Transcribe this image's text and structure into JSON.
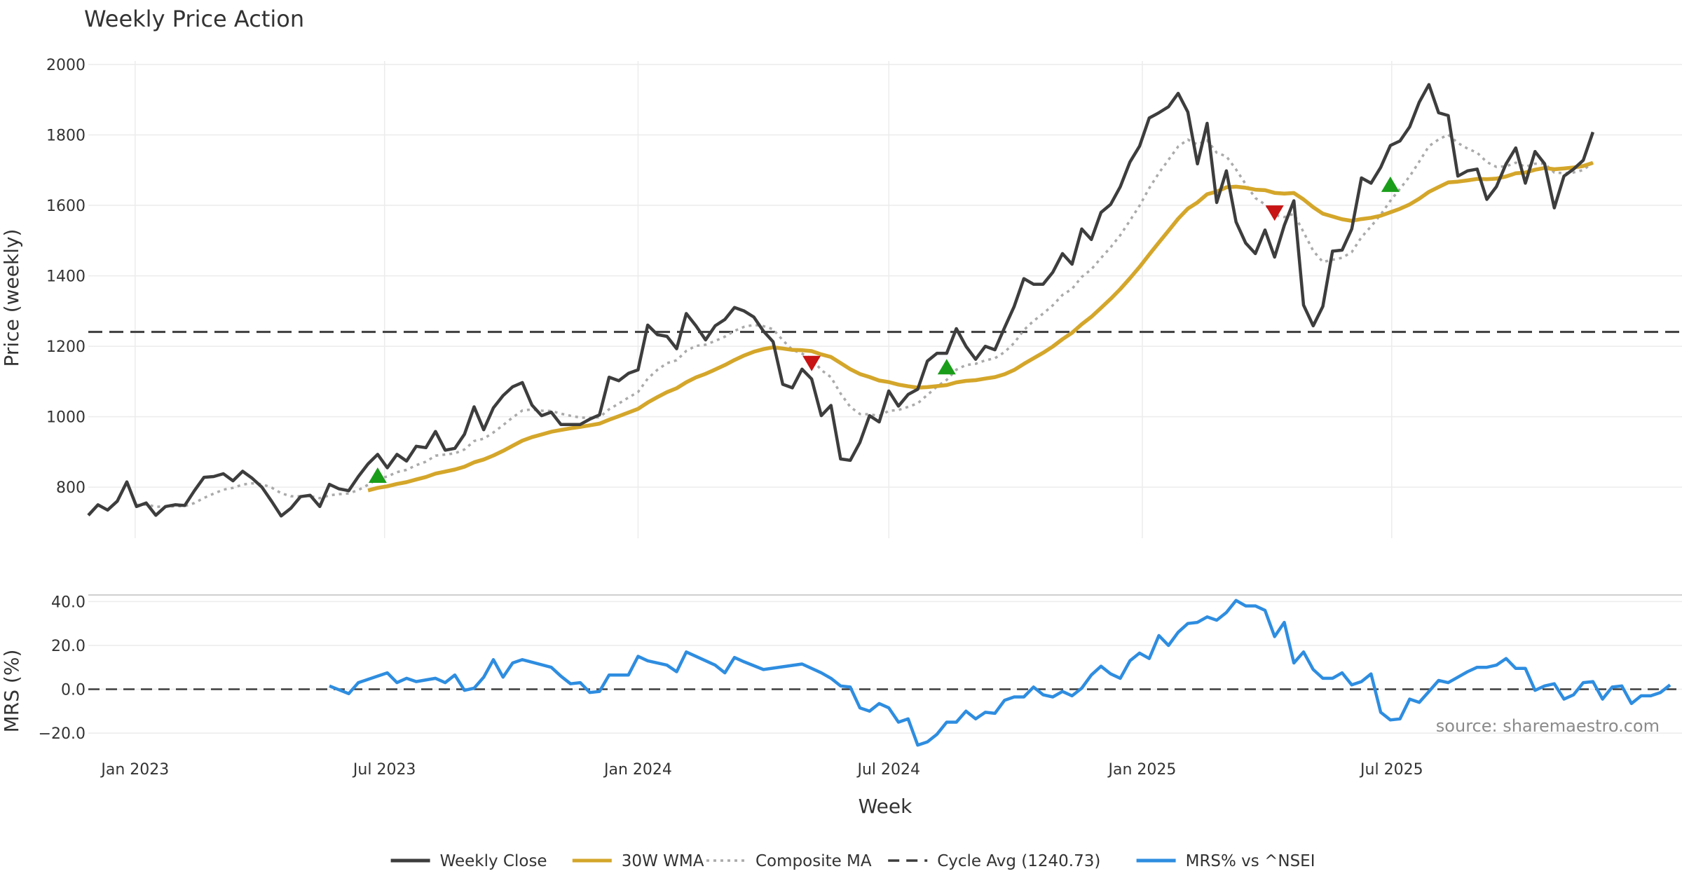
{
  "chart_data": {
    "type": "line",
    "title": "Weekly Price Action",
    "xlabel": "Week",
    "source": "source: sharemaestro.com",
    "x_range": [
      "2022-11-28",
      "2025-09-22"
    ],
    "x_ticks": [
      {
        "date": "2023-01-01",
        "label": "Jan 2023"
      },
      {
        "date": "2023-07-01",
        "label": "Jul 2023"
      },
      {
        "date": "2024-01-01",
        "label": "Jan 2024"
      },
      {
        "date": "2024-07-01",
        "label": "Jul 2024"
      },
      {
        "date": "2025-01-01",
        "label": "Jan 2025"
      },
      {
        "date": "2025-07-01",
        "label": "Jul 2025"
      }
    ],
    "price_panel": {
      "ylabel": "Price (weekly)",
      "ylim": [
        655,
        2010
      ],
      "y_ticks": [
        800,
        1000,
        1200,
        1400,
        1600,
        1800,
        2000
      ],
      "cycle_avg": 1240.73,
      "close_anchors": [
        [
          "2022-11-28",
          720
        ],
        [
          "2022-12-05",
          750
        ],
        [
          "2022-12-12",
          735
        ],
        [
          "2022-12-19",
          760
        ],
        [
          "2022-12-26",
          815
        ],
        [
          "2023-01-02",
          745
        ],
        [
          "2023-01-09",
          755
        ],
        [
          "2023-01-16",
          720
        ],
        [
          "2023-01-23",
          745
        ],
        [
          "2023-01-30",
          750
        ],
        [
          "2023-02-06",
          748
        ],
        [
          "2023-02-13",
          790
        ],
        [
          "2023-02-20",
          828
        ],
        [
          "2023-02-27",
          830
        ],
        [
          "2023-03-06",
          838
        ],
        [
          "2023-03-13",
          818
        ],
        [
          "2023-03-20",
          845
        ],
        [
          "2023-03-27",
          825
        ],
        [
          "2023-04-03",
          800
        ],
        [
          "2023-04-10",
          760
        ],
        [
          "2023-04-17",
          718
        ],
        [
          "2023-04-24",
          740
        ],
        [
          "2023-05-01",
          773
        ],
        [
          "2023-05-08",
          777
        ],
        [
          "2023-05-15",
          745
        ],
        [
          "2023-05-22",
          808
        ],
        [
          "2023-05-29",
          795
        ],
        [
          "2023-06-05",
          790
        ],
        [
          "2023-06-12",
          830
        ],
        [
          "2023-06-19",
          866
        ],
        [
          "2023-06-26",
          893
        ],
        [
          "2023-07-03",
          855
        ],
        [
          "2023-07-10",
          893
        ],
        [
          "2023-07-17",
          874
        ],
        [
          "2023-07-24",
          916
        ],
        [
          "2023-07-31",
          912
        ],
        [
          "2023-08-07",
          958
        ],
        [
          "2023-08-14",
          905
        ],
        [
          "2023-08-21",
          910
        ],
        [
          "2023-08-28",
          950
        ],
        [
          "2023-09-04",
          1028
        ],
        [
          "2023-09-11",
          963
        ],
        [
          "2023-09-18",
          1025
        ],
        [
          "2023-09-25",
          1060
        ],
        [
          "2023-10-02",
          1085
        ],
        [
          "2023-10-09",
          1097
        ],
        [
          "2023-10-16",
          1033
        ],
        [
          "2023-10-23",
          1003
        ],
        [
          "2023-10-30",
          1013
        ],
        [
          "2023-11-06",
          978
        ],
        [
          "2023-11-13",
          978
        ],
        [
          "2023-11-20",
          978
        ],
        [
          "2023-11-27",
          993
        ],
        [
          "2023-12-04",
          1005
        ],
        [
          "2023-12-11",
          1112
        ],
        [
          "2023-12-18",
          1102
        ],
        [
          "2023-12-25",
          1123
        ],
        [
          "2024-01-01",
          1133
        ],
        [
          "2024-01-08",
          1260
        ],
        [
          "2024-01-15",
          1233
        ],
        [
          "2024-01-22",
          1228
        ],
        [
          "2024-01-29",
          1193
        ],
        [
          "2024-02-05",
          1293
        ],
        [
          "2024-02-12",
          1258
        ],
        [
          "2024-02-19",
          1218
        ],
        [
          "2024-02-26",
          1258
        ],
        [
          "2024-03-04",
          1276
        ],
        [
          "2024-03-11",
          1310
        ],
        [
          "2024-03-18",
          1300
        ],
        [
          "2024-03-25",
          1283
        ],
        [
          "2024-04-01",
          1243
        ],
        [
          "2024-04-08",
          1213
        ],
        [
          "2024-04-15",
          1092
        ],
        [
          "2024-04-22",
          1082
        ],
        [
          "2024-04-29",
          1135
        ],
        [
          "2024-05-06",
          1107
        ],
        [
          "2024-05-13",
          1003
        ],
        [
          "2024-05-20",
          1032
        ],
        [
          "2024-05-27",
          880
        ],
        [
          "2024-06-03",
          876
        ],
        [
          "2024-06-10",
          927
        ],
        [
          "2024-06-17",
          1003
        ],
        [
          "2024-06-24",
          985
        ],
        [
          "2024-07-01",
          1073
        ],
        [
          "2024-07-08",
          1030
        ],
        [
          "2024-07-15",
          1063
        ],
        [
          "2024-07-22",
          1078
        ],
        [
          "2024-07-29",
          1158
        ],
        [
          "2024-08-05",
          1180
        ],
        [
          "2024-08-12",
          1180
        ],
        [
          "2024-08-19",
          1250
        ],
        [
          "2024-08-26",
          1200
        ],
        [
          "2024-09-02",
          1163
        ],
        [
          "2024-09-09",
          1200
        ],
        [
          "2024-09-16",
          1190
        ],
        [
          "2024-09-23",
          1253
        ],
        [
          "2024-09-30",
          1313
        ],
        [
          "2024-10-07",
          1392
        ],
        [
          "2024-10-14",
          1376
        ],
        [
          "2024-10-21",
          1376
        ],
        [
          "2024-10-28",
          1410
        ],
        [
          "2024-11-04",
          1463
        ],
        [
          "2024-11-11",
          1433
        ],
        [
          "2024-11-18",
          1533
        ],
        [
          "2024-11-25",
          1503
        ],
        [
          "2024-12-02",
          1580
        ],
        [
          "2024-12-09",
          1603
        ],
        [
          "2024-12-16",
          1653
        ],
        [
          "2024-12-23",
          1723
        ],
        [
          "2024-12-30",
          1768
        ],
        [
          "2025-01-06",
          1848
        ],
        [
          "2025-01-13",
          1863
        ],
        [
          "2025-01-20",
          1880
        ],
        [
          "2025-01-27",
          1918
        ],
        [
          "2025-02-03",
          1865
        ],
        [
          "2025-02-10",
          1718
        ],
        [
          "2025-02-17",
          1833
        ],
        [
          "2025-02-24",
          1608
        ],
        [
          "2025-03-03",
          1698
        ],
        [
          "2025-03-10",
          1553
        ],
        [
          "2025-03-17",
          1493
        ],
        [
          "2025-03-24",
          1463
        ],
        [
          "2025-03-31",
          1530
        ],
        [
          "2025-04-07",
          1453
        ],
        [
          "2025-04-14",
          1543
        ],
        [
          "2025-04-21",
          1613
        ],
        [
          "2025-04-28",
          1317
        ],
        [
          "2025-05-05",
          1258
        ],
        [
          "2025-05-12",
          1313
        ],
        [
          "2025-05-19",
          1470
        ],
        [
          "2025-05-26",
          1473
        ],
        [
          "2025-06-02",
          1533
        ],
        [
          "2025-06-09",
          1678
        ],
        [
          "2025-06-16",
          1663
        ],
        [
          "2025-06-23",
          1708
        ],
        [
          "2025-06-30",
          1770
        ],
        [
          "2025-07-07",
          1783
        ],
        [
          "2025-07-14",
          1823
        ],
        [
          "2025-07-21",
          1893
        ],
        [
          "2025-07-28",
          1943
        ],
        [
          "2025-08-04",
          1863
        ],
        [
          "2025-08-11",
          1855
        ],
        [
          "2025-08-18",
          1683
        ],
        [
          "2025-08-25",
          1698
        ],
        [
          "2025-09-01",
          1703
        ],
        [
          "2025-09-08",
          1617
        ],
        [
          "2025-09-15",
          1653
        ],
        [
          "2025-09-22",
          1718
        ]
      ],
      "tail_points": [
        [
          "2025-09-29",
          1763
        ],
        [
          "2025-10-06",
          1663
        ],
        [
          "2025-10-13",
          1753
        ],
        [
          "2025-10-20",
          1718
        ],
        [
          "2025-10-27",
          1593
        ],
        [
          "2025-11-03",
          1683
        ],
        [
          "2025-11-10",
          1703
        ],
        [
          "2025-11-17",
          1728
        ],
        [
          "2025-11-24",
          1808
        ]
      ],
      "wma_period": 30,
      "signals": [
        {
          "date": "2023-06-26",
          "value": 832,
          "type": "buy"
        },
        {
          "date": "2024-05-06",
          "value": 1153,
          "type": "sell"
        },
        {
          "date": "2024-08-12",
          "value": 1140,
          "type": "buy"
        },
        {
          "date": "2025-04-07",
          "value": 1580,
          "type": "sell"
        },
        {
          "date": "2025-06-30",
          "value": 1658,
          "type": "buy"
        }
      ]
    },
    "mrs_panel": {
      "ylabel": "MRS (%)",
      "ylim": [
        -27,
        43
      ],
      "y_ticks": [
        40,
        20,
        0,
        -20
      ],
      "y_tick_labels": [
        "40.0",
        "20.0",
        "0.0",
        "−20.0"
      ],
      "points": [
        [
          "2023-05-22",
          1.5
        ],
        [
          "2023-06-05",
          -2
        ],
        [
          "2023-06-12",
          3
        ],
        [
          "2023-07-03",
          7.5
        ],
        [
          "2023-07-10",
          3
        ],
        [
          "2023-07-17",
          5
        ],
        [
          "2023-07-24",
          3.5
        ],
        [
          "2023-08-07",
          5
        ],
        [
          "2023-08-14",
          3
        ],
        [
          "2023-08-21",
          6.5
        ],
        [
          "2023-08-28",
          -0.5
        ],
        [
          "2023-09-04",
          0.5
        ],
        [
          "2023-09-11",
          5.5
        ],
        [
          "2023-09-18",
          13.5
        ],
        [
          "2023-09-25",
          5.5
        ],
        [
          "2023-10-02",
          12
        ],
        [
          "2023-10-09",
          13.5
        ],
        [
          "2023-10-30",
          10
        ],
        [
          "2023-11-06",
          6
        ],
        [
          "2023-11-13",
          2.5
        ],
        [
          "2023-11-20",
          3
        ],
        [
          "2023-11-27",
          -1.5
        ],
        [
          "2023-12-04",
          -1
        ],
        [
          "2023-12-11",
          6.5
        ],
        [
          "2023-12-25",
          6.5
        ],
        [
          "2024-01-01",
          15
        ],
        [
          "2024-01-08",
          13
        ],
        [
          "2024-01-22",
          11
        ],
        [
          "2024-01-29",
          8
        ],
        [
          "2024-02-05",
          17
        ],
        [
          "2024-02-12",
          15
        ],
        [
          "2024-02-26",
          11
        ],
        [
          "2024-03-04",
          7.5
        ],
        [
          "2024-03-11",
          14.5
        ],
        [
          "2024-03-18",
          12.5
        ],
        [
          "2024-04-01",
          9
        ],
        [
          "2024-04-29",
          11.5
        ],
        [
          "2024-05-13",
          7.5
        ],
        [
          "2024-05-20",
          5
        ],
        [
          "2024-05-27",
          1.5
        ],
        [
          "2024-06-03",
          1
        ],
        [
          "2024-06-10",
          -8.5
        ],
        [
          "2024-06-17",
          -10
        ],
        [
          "2024-06-24",
          -6.5
        ],
        [
          "2024-07-01",
          -8.5
        ],
        [
          "2024-07-08",
          -15
        ],
        [
          "2024-07-15",
          -13.5
        ],
        [
          "2024-07-22",
          -25.5
        ],
        [
          "2024-07-29",
          -24
        ],
        [
          "2024-08-05",
          -20.5
        ],
        [
          "2024-08-12",
          -15
        ],
        [
          "2024-08-19",
          -15
        ],
        [
          "2024-08-26",
          -10
        ],
        [
          "2024-09-02",
          -13.5
        ],
        [
          "2024-09-09",
          -10.5
        ],
        [
          "2024-09-16",
          -11
        ],
        [
          "2024-09-23",
          -5
        ],
        [
          "2024-09-30",
          -3.5
        ],
        [
          "2024-10-07",
          -3.5
        ],
        [
          "2024-10-14",
          1
        ],
        [
          "2024-10-21",
          -2.5
        ],
        [
          "2024-10-28",
          -3.5
        ],
        [
          "2024-11-04",
          -1
        ],
        [
          "2024-11-11",
          -3
        ],
        [
          "2024-11-18",
          0.5
        ],
        [
          "2024-11-25",
          6.5
        ],
        [
          "2024-12-02",
          10.5
        ],
        [
          "2024-12-09",
          7
        ],
        [
          "2024-12-16",
          5
        ],
        [
          "2024-12-23",
          13
        ],
        [
          "2024-12-30",
          16.5
        ],
        [
          "2025-01-06",
          14
        ],
        [
          "2025-01-13",
          24.5
        ],
        [
          "2025-01-20",
          20
        ],
        [
          "2025-01-27",
          26
        ],
        [
          "2025-02-03",
          30
        ],
        [
          "2025-02-10",
          30.5
        ],
        [
          "2025-02-17",
          33
        ],
        [
          "2025-02-24",
          31.5
        ],
        [
          "2025-03-03",
          35
        ],
        [
          "2025-03-10",
          40.5
        ],
        [
          "2025-03-17",
          38
        ],
        [
          "2025-03-24",
          38
        ],
        [
          "2025-03-31",
          36
        ],
        [
          "2025-04-07",
          24
        ],
        [
          "2025-04-14",
          30.5
        ],
        [
          "2025-04-21",
          12
        ],
        [
          "2025-04-28",
          17
        ],
        [
          "2025-05-05",
          9
        ],
        [
          "2025-05-12",
          5
        ],
        [
          "2025-05-19",
          5
        ],
        [
          "2025-05-26",
          7.5
        ],
        [
          "2025-06-02",
          2
        ],
        [
          "2025-06-09",
          3.5
        ],
        [
          "2025-06-16",
          7
        ],
        [
          "2025-06-23",
          -10.5
        ],
        [
          "2025-06-30",
          -14
        ],
        [
          "2025-07-07",
          -13.5
        ],
        [
          "2025-07-14",
          -4.5
        ],
        [
          "2025-07-21",
          -6
        ],
        [
          "2025-07-28",
          -1
        ],
        [
          "2025-08-04",
          4
        ],
        [
          "2025-08-11",
          3
        ],
        [
          "2025-08-18",
          5.5
        ],
        [
          "2025-08-25",
          8
        ],
        [
          "2025-09-01",
          10
        ],
        [
          "2025-09-08",
          10
        ],
        [
          "2025-09-15",
          11
        ],
        [
          "2025-09-22",
          14
        ]
      ],
      "tail_points": [
        [
          "2025-09-29",
          9.5
        ],
        [
          "2025-10-06",
          9.5
        ],
        [
          "2025-10-13",
          -0.5
        ],
        [
          "2025-10-20",
          1.5
        ],
        [
          "2025-10-27",
          2.5
        ],
        [
          "2025-11-03",
          -4.5
        ],
        [
          "2025-11-10",
          -2.5
        ],
        [
          "2025-11-17",
          3
        ],
        [
          "2025-11-24",
          3.5
        ],
        [
          "2025-12-01",
          -4.5
        ],
        [
          "2025-12-08",
          1
        ],
        [
          "2025-12-15",
          1.5
        ],
        [
          "2025-12-22",
          -6.5
        ],
        [
          "2025-12-29",
          -3
        ],
        [
          "2026-01-05",
          -3
        ],
        [
          "2026-01-12",
          -1.5
        ],
        [
          "2026-01-19",
          2
        ]
      ]
    },
    "legend": [
      {
        "label": "Weekly Close",
        "color": "#3d3d3d",
        "style": "solid"
      },
      {
        "label": "30W WMA",
        "color": "#d4a62a",
        "style": "solid"
      },
      {
        "label": "Composite MA",
        "color": "#aaaaaa",
        "style": "dotted"
      },
      {
        "label": "Cycle Avg (1240.73)",
        "color": "#3d3d3d",
        "style": "dashed"
      },
      {
        "label": "MRS% vs ^NSEI",
        "color": "#2e8de0",
        "style": "solid"
      }
    ],
    "colors": {
      "close": "#3d3d3d",
      "wma": "#d4a62a",
      "composite": "#aaaaaa",
      "mrs": "#2e8de0",
      "buy": "#1a9e1a",
      "sell": "#c81414",
      "grid": "#ececec"
    }
  }
}
